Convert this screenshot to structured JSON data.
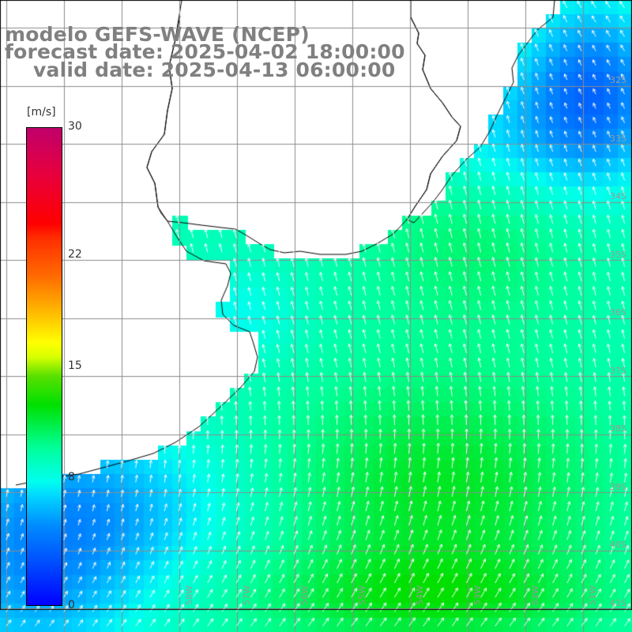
{
  "header": {
    "line1": "modelo GEFS-WAVE (NCEP)",
    "line2": "forecast date: 2025-04-02 18:00:00",
    "line3": "valid date: 2025-04-13 06:00:00"
  },
  "colorbar": {
    "unit": "[m/s]",
    "ticks": [
      {
        "label": "30",
        "value": 30
      },
      {
        "label": "22",
        "value": 22
      },
      {
        "label": "15",
        "value": 15
      },
      {
        "label": "8",
        "value": 8
      },
      {
        "label": "0",
        "value": 0
      }
    ],
    "range": [
      0,
      30
    ],
    "colors": [
      "#0000ff",
      "#00d8ff",
      "#00ff99",
      "#00e000",
      "#ffff00",
      "#ff6a00",
      "#ff0000",
      "#c0006b"
    ]
  },
  "grid": {
    "lat_labels": [
      "32S",
      "33S",
      "34S",
      "35S",
      "36S",
      "37S",
      "38S",
      "39S",
      "40S",
      "41S"
    ],
    "lon_labels": [
      "58W",
      "57W",
      "56W",
      "55W",
      "54W",
      "53W",
      "52W",
      "51W"
    ]
  },
  "colors": {
    "land": "#ffffff",
    "coastline": "#000000",
    "gridline": "#8c8c8c",
    "arrows": "#ffffff",
    "title_text": "#808080"
  }
}
